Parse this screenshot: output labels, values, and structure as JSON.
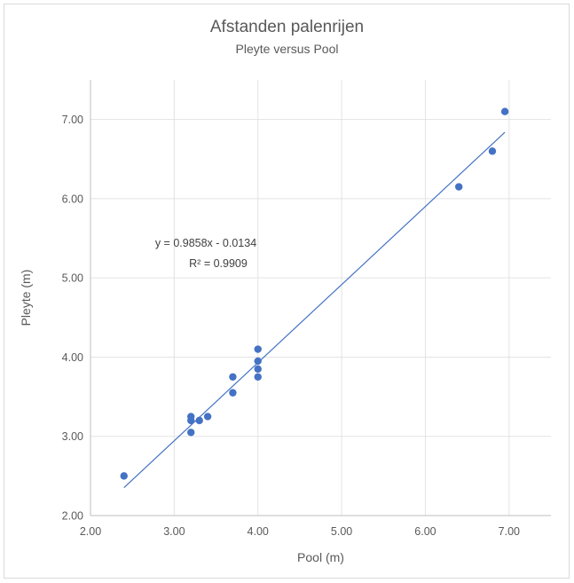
{
  "chart_data": {
    "type": "scatter",
    "title": "Afstanden palenrijen",
    "subtitle": "Pleyte versus Pool",
    "xlabel": "Pool (m)",
    "ylabel": "Pleyte (m)",
    "xlim": [
      2.0,
      7.5
    ],
    "ylim": [
      2.0,
      7.5
    ],
    "xticks": [
      2.0,
      3.0,
      4.0,
      5.0,
      6.0,
      7.0
    ],
    "yticks": [
      2.0,
      3.0,
      4.0,
      5.0,
      6.0,
      7.0
    ],
    "xtick_labels": [
      "2.00",
      "3.00",
      "4.00",
      "5.00",
      "6.00",
      "7.00"
    ],
    "ytick_labels": [
      "2.00",
      "3.00",
      "4.00",
      "5.00",
      "6.00",
      "7.00"
    ],
    "grid": true,
    "marker_color": "#4472c4",
    "series": [
      {
        "x": [
          2.4,
          3.2,
          3.2,
          3.2,
          3.3,
          3.4,
          3.7,
          3.7,
          4.0,
          4.0,
          4.0,
          4.0,
          6.4,
          6.8,
          6.95
        ],
        "y": [
          2.5,
          3.05,
          3.2,
          3.25,
          3.2,
          3.25,
          3.55,
          3.75,
          3.75,
          3.85,
          3.95,
          4.1,
          6.15,
          6.6,
          7.1
        ]
      }
    ],
    "trendline": {
      "type": "linear",
      "slope": 0.9858,
      "intercept": -0.0134,
      "x_range": [
        2.4,
        6.95
      ],
      "equation_label": "y = 0.9858x  - 0.0134",
      "r2_label": "R² = 0.9909"
    }
  }
}
